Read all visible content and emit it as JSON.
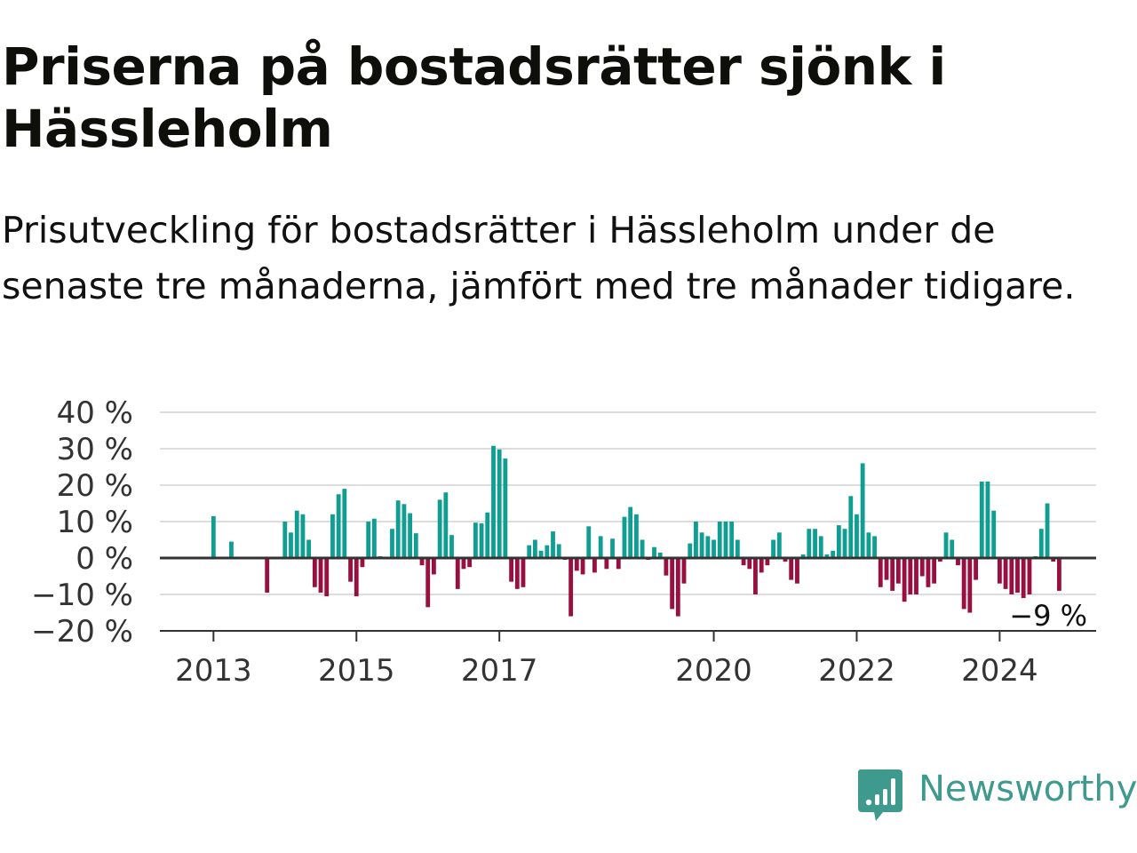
{
  "title": "Priserna på bostadsrätter sjönk i Hässleholm",
  "subtitle": "Prisutveckling för bostadsrätter i Hässleholm under de senaste tre månaderna, jämfört med tre månader tidigare.",
  "logo": {
    "text": "Newsworthy",
    "icon": "newsworthy-chart-icon"
  },
  "colors": {
    "positive": "#109e93",
    "negative": "#990f40",
    "grid": "#dddddd",
    "zero": "#333333",
    "logo": "#3d9a8d"
  },
  "chart_data": {
    "type": "bar",
    "ylim": [
      -20,
      40
    ],
    "yticks": [
      -20,
      -10,
      0,
      10,
      20,
      30,
      40
    ],
    "ytick_labels": [
      "−20 %",
      "−10 %",
      "0 %",
      "10 %",
      "20 %",
      "30 %",
      "40 %"
    ],
    "xticks": [
      {
        "label": "2013",
        "x": 2013.0
      },
      {
        "label": "2015",
        "x": 2015.0
      },
      {
        "label": "2017",
        "x": 2017.0
      },
      {
        "label": "2020",
        "x": 2020.0
      },
      {
        "label": "2022",
        "x": 2022.0
      },
      {
        "label": "2024",
        "x": 2024.0
      }
    ],
    "grid": true,
    "last_value_label": "−9 %",
    "points": [
      {
        "x": 2013.0,
        "value": 11.5
      },
      {
        "x": 2013.25,
        "value": 4.5
      },
      {
        "x": 2013.75,
        "value": -9.5
      },
      {
        "x": 2014.0,
        "value": 10
      },
      {
        "x": 2014.083,
        "value": 7
      },
      {
        "x": 2014.167,
        "value": 13
      },
      {
        "x": 2014.25,
        "value": 12
      },
      {
        "x": 2014.333,
        "value": 5
      },
      {
        "x": 2014.417,
        "value": -8
      },
      {
        "x": 2014.5,
        "value": -9.5
      },
      {
        "x": 2014.583,
        "value": -10.5
      },
      {
        "x": 2014.667,
        "value": 12
      },
      {
        "x": 2014.75,
        "value": 17.5
      },
      {
        "x": 2014.833,
        "value": 19
      },
      {
        "x": 2014.917,
        "value": -6.5
      },
      {
        "x": 2015.0,
        "value": -10.5
      },
      {
        "x": 2015.083,
        "value": -2.5
      },
      {
        "x": 2015.167,
        "value": 10
      },
      {
        "x": 2015.25,
        "value": 10.8
      },
      {
        "x": 2015.333,
        "value": 0.5
      },
      {
        "x": 2015.5,
        "value": 8
      },
      {
        "x": 2015.583,
        "value": 15.8
      },
      {
        "x": 2015.667,
        "value": 14.8
      },
      {
        "x": 2015.75,
        "value": 12.3
      },
      {
        "x": 2015.833,
        "value": 6.8
      },
      {
        "x": 2015.917,
        "value": -2
      },
      {
        "x": 2016.0,
        "value": -13.5
      },
      {
        "x": 2016.083,
        "value": -4.5
      },
      {
        "x": 2016.167,
        "value": 16
      },
      {
        "x": 2016.25,
        "value": 18
      },
      {
        "x": 2016.333,
        "value": 6.3
      },
      {
        "x": 2016.417,
        "value": -8.5
      },
      {
        "x": 2016.5,
        "value": -3
      },
      {
        "x": 2016.583,
        "value": -2.5
      },
      {
        "x": 2016.667,
        "value": 9.7
      },
      {
        "x": 2016.75,
        "value": 9.5
      },
      {
        "x": 2016.833,
        "value": 12.5
      },
      {
        "x": 2016.917,
        "value": 30.8
      },
      {
        "x": 2017.0,
        "value": 29.8
      },
      {
        "x": 2017.083,
        "value": 27.3
      },
      {
        "x": 2017.167,
        "value": -6.5
      },
      {
        "x": 2017.25,
        "value": -8.5
      },
      {
        "x": 2017.333,
        "value": -8
      },
      {
        "x": 2017.417,
        "value": 3.5
      },
      {
        "x": 2017.5,
        "value": 5
      },
      {
        "x": 2017.583,
        "value": 2
      },
      {
        "x": 2017.667,
        "value": 3.5
      },
      {
        "x": 2017.75,
        "value": 7.3
      },
      {
        "x": 2017.833,
        "value": 3.8
      },
      {
        "x": 2017.917,
        "value": -0.5
      },
      {
        "x": 2018.0,
        "value": -16
      },
      {
        "x": 2018.083,
        "value": -3.5
      },
      {
        "x": 2018.167,
        "value": -4.5
      },
      {
        "x": 2018.25,
        "value": 8.7
      },
      {
        "x": 2018.333,
        "value": -4
      },
      {
        "x": 2018.417,
        "value": 6
      },
      {
        "x": 2018.5,
        "value": -3
      },
      {
        "x": 2018.583,
        "value": 5.3
      },
      {
        "x": 2018.667,
        "value": -3
      },
      {
        "x": 2018.75,
        "value": 11.3
      },
      {
        "x": 2018.833,
        "value": 14
      },
      {
        "x": 2018.917,
        "value": 12
      },
      {
        "x": 2019.0,
        "value": 5
      },
      {
        "x": 2019.083,
        "value": -0.5
      },
      {
        "x": 2019.167,
        "value": 3
      },
      {
        "x": 2019.25,
        "value": 1.5
      },
      {
        "x": 2019.333,
        "value": -4.8
      },
      {
        "x": 2019.417,
        "value": -14
      },
      {
        "x": 2019.5,
        "value": -16
      },
      {
        "x": 2019.583,
        "value": -7
      },
      {
        "x": 2019.667,
        "value": 4
      },
      {
        "x": 2019.75,
        "value": 10
      },
      {
        "x": 2019.833,
        "value": 7
      },
      {
        "x": 2019.917,
        "value": 6
      },
      {
        "x": 2020.0,
        "value": 5
      },
      {
        "x": 2020.083,
        "value": 10
      },
      {
        "x": 2020.167,
        "value": 10
      },
      {
        "x": 2020.25,
        "value": 10
      },
      {
        "x": 2020.333,
        "value": 5
      },
      {
        "x": 2020.417,
        "value": -2
      },
      {
        "x": 2020.5,
        "value": -3
      },
      {
        "x": 2020.583,
        "value": -10
      },
      {
        "x": 2020.667,
        "value": -4
      },
      {
        "x": 2020.75,
        "value": -2
      },
      {
        "x": 2020.833,
        "value": 5
      },
      {
        "x": 2020.917,
        "value": 7
      },
      {
        "x": 2021.0,
        "value": -1
      },
      {
        "x": 2021.083,
        "value": -6
      },
      {
        "x": 2021.167,
        "value": -7
      },
      {
        "x": 2021.25,
        "value": 1
      },
      {
        "x": 2021.333,
        "value": 8
      },
      {
        "x": 2021.417,
        "value": 8
      },
      {
        "x": 2021.5,
        "value": 6
      },
      {
        "x": 2021.583,
        "value": 1
      },
      {
        "x": 2021.667,
        "value": 2
      },
      {
        "x": 2021.75,
        "value": 9
      },
      {
        "x": 2021.833,
        "value": 8
      },
      {
        "x": 2021.917,
        "value": 17
      },
      {
        "x": 2022.0,
        "value": 12
      },
      {
        "x": 2022.083,
        "value": 26
      },
      {
        "x": 2022.167,
        "value": 7
      },
      {
        "x": 2022.25,
        "value": 6
      },
      {
        "x": 2022.333,
        "value": -8
      },
      {
        "x": 2022.417,
        "value": -6
      },
      {
        "x": 2022.5,
        "value": -9
      },
      {
        "x": 2022.583,
        "value": -7
      },
      {
        "x": 2022.667,
        "value": -12
      },
      {
        "x": 2022.75,
        "value": -10
      },
      {
        "x": 2022.833,
        "value": -10
      },
      {
        "x": 2022.917,
        "value": -5
      },
      {
        "x": 2023.0,
        "value": -8
      },
      {
        "x": 2023.083,
        "value": -7
      },
      {
        "x": 2023.167,
        "value": -1
      },
      {
        "x": 2023.25,
        "value": 7
      },
      {
        "x": 2023.333,
        "value": 5
      },
      {
        "x": 2023.417,
        "value": -2
      },
      {
        "x": 2023.5,
        "value": -14
      },
      {
        "x": 2023.583,
        "value": -15
      },
      {
        "x": 2023.667,
        "value": -6
      },
      {
        "x": 2023.75,
        "value": 21
      },
      {
        "x": 2023.833,
        "value": 21
      },
      {
        "x": 2023.917,
        "value": 13
      },
      {
        "x": 2024.0,
        "value": -7
      },
      {
        "x": 2024.083,
        "value": -8.5
      },
      {
        "x": 2024.167,
        "value": -10
      },
      {
        "x": 2024.25,
        "value": -9.5
      },
      {
        "x": 2024.333,
        "value": -11
      },
      {
        "x": 2024.417,
        "value": -10
      },
      {
        "x": 2024.5,
        "value": 0.5
      },
      {
        "x": 2024.583,
        "value": 8
      },
      {
        "x": 2024.667,
        "value": 15
      },
      {
        "x": 2024.75,
        "value": -1
      },
      {
        "x": 2024.833,
        "value": -9
      }
    ]
  }
}
